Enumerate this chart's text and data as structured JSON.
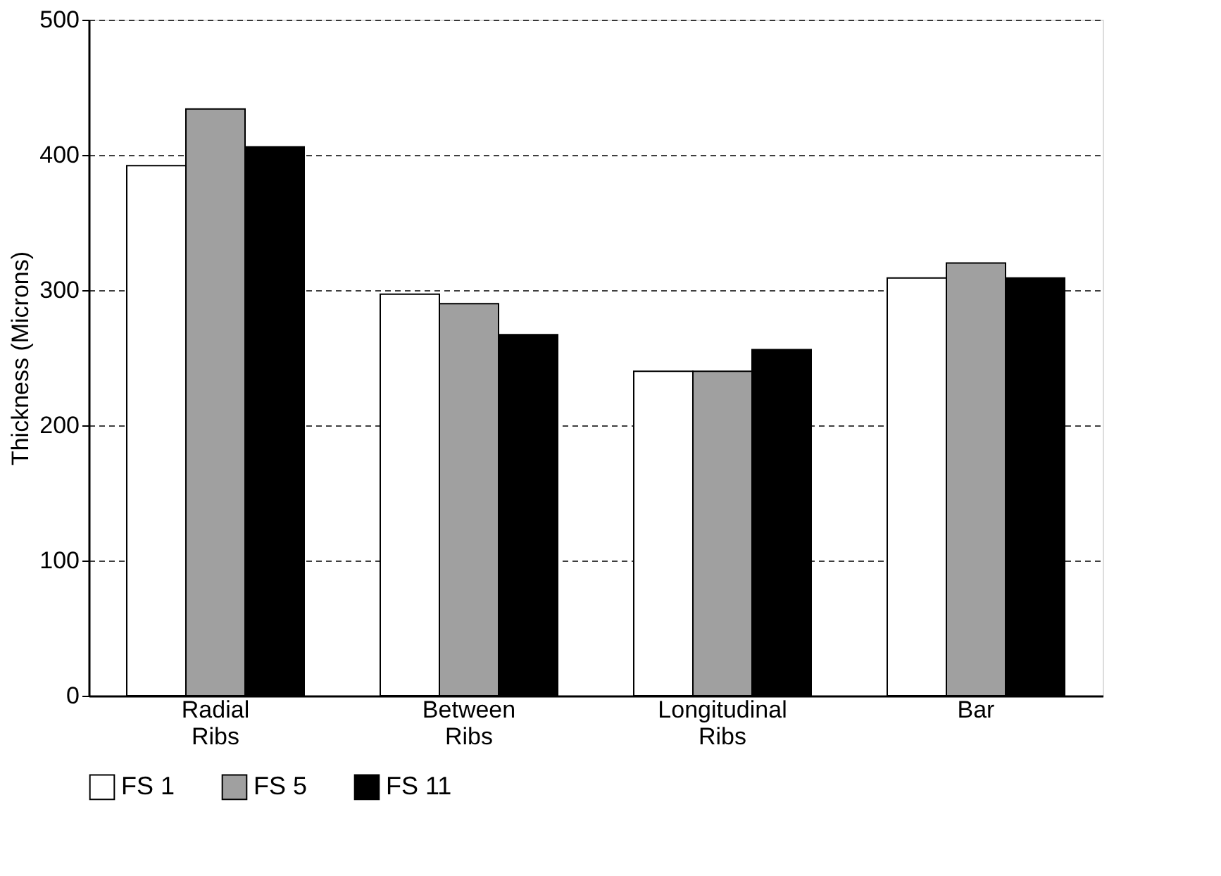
{
  "chart_data": {
    "type": "bar",
    "ylabel": "Thickness (Microns)",
    "categories": [
      "Radial Ribs",
      "Between Ribs",
      "Longitudinal Ribs",
      "Bar"
    ],
    "series": [
      {
        "name": "FS 1",
        "color": "#ffffff",
        "values": [
          392,
          297,
          240,
          309
        ]
      },
      {
        "name": "FS 5",
        "color": "#a0a0a0",
        "values": [
          434,
          290,
          240,
          320
        ]
      },
      {
        "name": "FS 11",
        "color": "#000000",
        "values": [
          406,
          267,
          256,
          309
        ]
      }
    ],
    "ylim": [
      0,
      500
    ],
    "yticks": [
      0,
      100,
      200,
      300,
      400,
      500
    ],
    "grid": "y",
    "legend": "bottom"
  }
}
